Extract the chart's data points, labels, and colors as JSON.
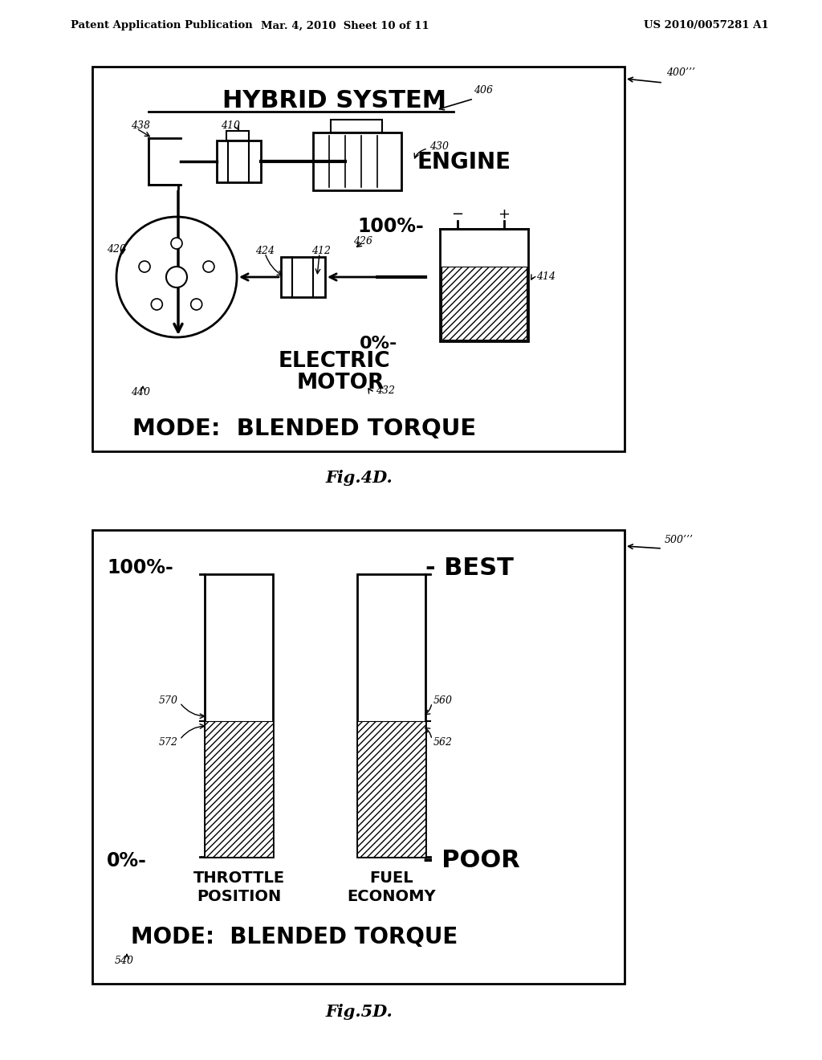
{
  "header_left": "Patent Application Publication",
  "header_mid": "Mar. 4, 2010  Sheet 10 of 11",
  "header_right": "US 2010/0057281 A1",
  "fig4d_label": "Fig.4D.",
  "fig5d_label": "Fig.5D.",
  "fig4d_ref": "400’’’",
  "fig5d_ref": "500’’’",
  "fig4d_title": "HYBRID SYSTEM",
  "fig4d_engine": "ENGINE",
  "fig4d_electric": "ELECTRIC",
  "fig4d_motor": "MOTOR",
  "fig4d_mode": "MODE:  BLENDED TORQUE",
  "fig4d_100pct": "100%-",
  "fig4d_0pct": "0%-",
  "fig5d_100pct": "100%-",
  "fig5d_0pct": "0%-",
  "fig5d_best": "- BEST",
  "fig5d_poor": "- POOR",
  "fig5d_throttle": "THROTTLE\nPOSITION",
  "fig5d_fuel": "FUEL\nECONOMY",
  "fig5d_mode": "MODE:  BLENDED TORQUE",
  "bg_color": "#ffffff",
  "box_color": "#000000"
}
